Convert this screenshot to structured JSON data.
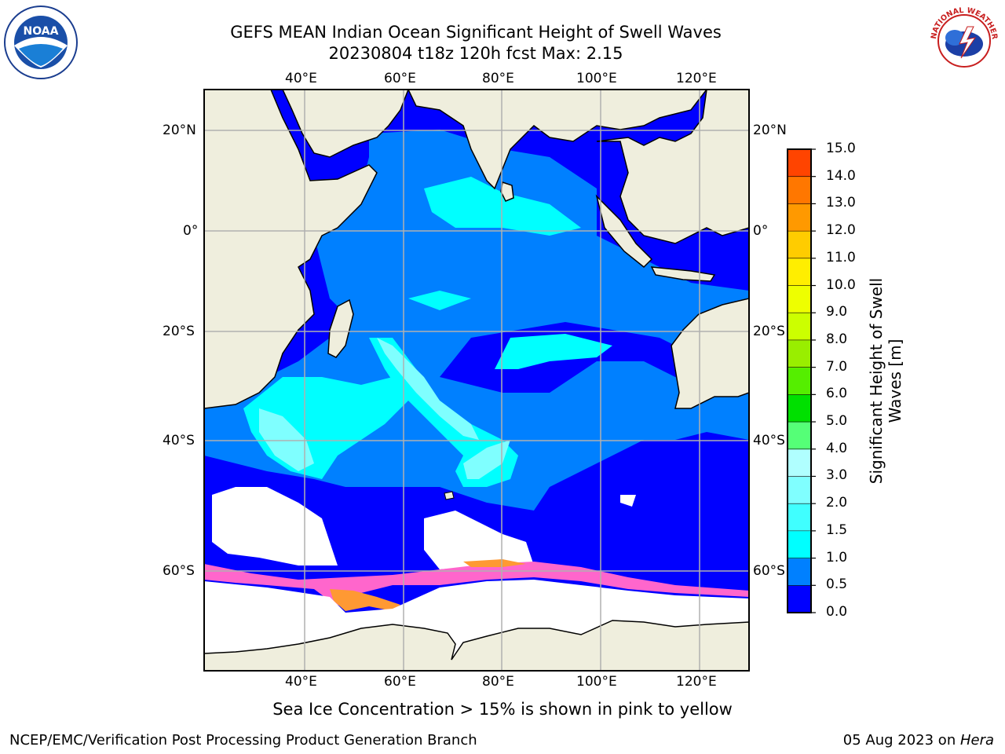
{
  "header": {
    "title_line1": "GEFS MEAN Indian Ocean Significant Height of Swell Waves",
    "title_line2": "20230804 t18z 120h fcst   Max: 2.15"
  },
  "map": {
    "lon_labels": [
      "40°E",
      "60°E",
      "80°E",
      "100°E",
      "120°E"
    ],
    "lat_labels": [
      "20°N",
      "0°",
      "20°S",
      "40°S",
      "60°S"
    ],
    "lon_range": [
      20,
      130
    ],
    "lat_range": [
      -71,
      28
    ],
    "colors": {
      "land": "#efeedd",
      "ocean_low": "#0000ff",
      "ocean_05": "#0080ff",
      "ocean_10": "#00ffff",
      "ocean_15": "#7fffff",
      "sea_ice": "#ff66cc",
      "sea_ice_edge": "#ff9933",
      "no_data": "#ffffff",
      "grid": "#b0b0b0"
    }
  },
  "colorbar": {
    "label": "Significant Height of Swell Waves [m]",
    "ticks": [
      "0.0",
      "0.5",
      "1.0",
      "1.5",
      "2.0",
      "3.0",
      "4.0",
      "5.0",
      "6.0",
      "7.0",
      "8.0",
      "9.0",
      "10.0",
      "11.0",
      "12.0",
      "13.0",
      "14.0",
      "15.0"
    ],
    "colors": [
      "#0000ff",
      "#0080ff",
      "#00ffff",
      "#40ffff",
      "#80ffff",
      "#b0ffff",
      "#55ff77",
      "#00e000",
      "#55ee00",
      "#99ee00",
      "#ccff00",
      "#eeff00",
      "#ffee00",
      "#ffcc00",
      "#ff9900",
      "#ff7700",
      "#ff4400",
      "#ff0000"
    ]
  },
  "notes": {
    "sea_ice": "Sea Ice Concentration > 15% is shown in pink to yellow"
  },
  "footer": {
    "left": "NCEP/EMC/Verification Post Processing Product Generation Branch",
    "right_date": "05 Aug 2023 on ",
    "right_host": "Hera"
  },
  "logos": {
    "left": "noaa-logo",
    "right": "nws-logo",
    "right_ring_text": "NATIONAL WEATHER SERVICE"
  }
}
